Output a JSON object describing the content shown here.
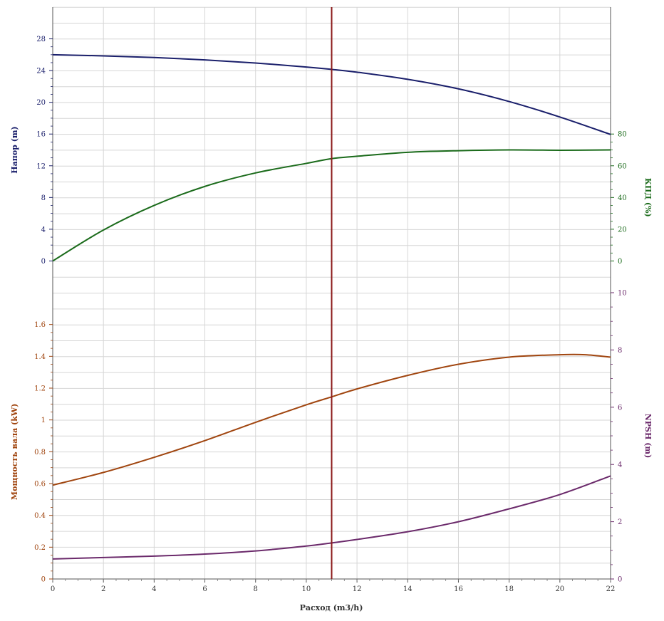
{
  "chart_data": {
    "type": "line",
    "grid": true,
    "x_axis": {
      "label": "Расход (m3/h)",
      "range": [
        0,
        22
      ],
      "ticks": [
        "0",
        "2",
        "4",
        "6",
        "8",
        "10",
        "12",
        "14",
        "16",
        "18",
        "20",
        "22"
      ]
    },
    "operating_point": {
      "x": 11,
      "color": "#8b1a1a"
    },
    "panels": [
      {
        "name": "top",
        "left_axis": {
          "label": "Напор (m)",
          "color": "#1a1f6b",
          "range": [
            -4,
            32
          ],
          "ticks": [
            "0",
            "4",
            "8",
            "12",
            "16",
            "20",
            "24",
            "28"
          ]
        },
        "right_axis": {
          "label": "КПД (%)",
          "color": "#1b6b1b",
          "range": [
            -20,
            160
          ],
          "ticks": [
            "0",
            "20",
            "40",
            "60",
            "80"
          ]
        },
        "series": [
          {
            "axis": "left",
            "color": "#1a1f6b",
            "x": [
              0,
              2,
              4,
              6,
              8,
              10,
              11,
              12,
              14,
              16,
              18,
              20,
              22
            ],
            "y": [
              26.0,
              25.85,
              25.65,
              25.35,
              24.95,
              24.45,
              24.15,
              23.8,
              22.9,
              21.7,
              20.1,
              18.15,
              15.95
            ]
          },
          {
            "axis": "right",
            "color": "#1b6b1b",
            "x": [
              0,
              2,
              4,
              6,
              8,
              10,
              11,
              12,
              14,
              16,
              18,
              20,
              22
            ],
            "y": [
              0,
              19.5,
              35,
              47,
              55.5,
              61.5,
              64.5,
              66,
              68.5,
              69.5,
              70,
              69.8,
              70
            ]
          }
        ]
      },
      {
        "name": "bottom",
        "left_axis": {
          "label": "Мощность вала (kW)",
          "color": "#a0450f",
          "range": [
            0,
            1.8
          ],
          "ticks": [
            "0",
            "0.2",
            "0.4",
            "0.6",
            "0.8",
            "1",
            "1.2",
            "1.4",
            "1.6"
          ]
        },
        "right_axis": {
          "label": "NPSH (m)",
          "color": "#6b2a6b",
          "range": [
            0,
            10
          ],
          "ticks": [
            "0",
            "2",
            "4",
            "6",
            "8",
            "10"
          ]
        },
        "series": [
          {
            "axis": "left",
            "color": "#a0450f",
            "x": [
              0,
              2,
              4,
              6,
              8,
              10,
              11,
              12,
              14,
              16,
              18,
              20,
              21,
              22
            ],
            "y": [
              0.59,
              0.67,
              0.765,
              0.87,
              0.985,
              1.095,
              1.145,
              1.195,
              1.28,
              1.35,
              1.395,
              1.41,
              1.41,
              1.395
            ]
          },
          {
            "axis": "right",
            "color": "#6b2a6b",
            "x": [
              0,
              2,
              4,
              6,
              8,
              10,
              11,
              12,
              14,
              16,
              18,
              20,
              22
            ],
            "y": [
              0.7,
              0.75,
              0.8,
              0.87,
              0.98,
              1.15,
              1.26,
              1.38,
              1.65,
              2.0,
              2.45,
              2.95,
              3.6
            ]
          }
        ]
      }
    ]
  }
}
